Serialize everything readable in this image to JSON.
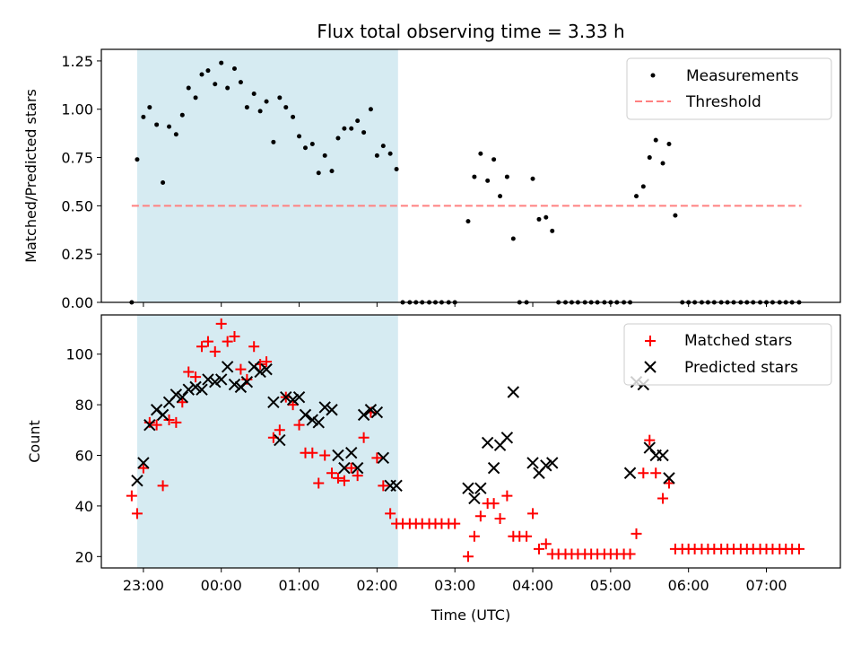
{
  "chart_data": {
    "type": "scatter",
    "title": "Flux total observing time = 3.33 h",
    "xlabel": "Time (UTC)",
    "x_unit": "hours after 22:00 UTC",
    "xlim": [
      0.46,
      9.95
    ],
    "x_ticks": [
      {
        "x": 1,
        "label": "23:00"
      },
      {
        "x": 2,
        "label": "00:00"
      },
      {
        "x": 3,
        "label": "01:00"
      },
      {
        "x": 4,
        "label": "02:00"
      },
      {
        "x": 5,
        "label": "03:00"
      },
      {
        "x": 6,
        "label": "04:00"
      },
      {
        "x": 7,
        "label": "05:00"
      },
      {
        "x": 8,
        "label": "06:00"
      },
      {
        "x": 9,
        "label": "07:00"
      }
    ],
    "shaded_span": {
      "x0": 0.92,
      "x1": 4.27,
      "color": "#add8e6"
    },
    "panels": [
      {
        "id": "ratio",
        "ylabel": "Matched/Predicted stars",
        "ylim": [
          0,
          1.31
        ],
        "y_ticks": [
          {
            "y": 0,
            "label": "0.00"
          },
          {
            "y": 0.25,
            "label": "0.25"
          },
          {
            "y": 0.5,
            "label": "0.50"
          },
          {
            "y": 0.75,
            "label": "0.75"
          },
          {
            "y": 1.0,
            "label": "1.00"
          },
          {
            "y": 1.25,
            "label": "1.25"
          }
        ],
        "legend": {
          "position": "top-right",
          "entries": [
            "Measurements",
            "Threshold"
          ]
        },
        "threshold": {
          "name": "Threshold",
          "value": 0.5,
          "x0": 0.85,
          "x1": 9.45,
          "color": "#ff8080"
        },
        "series": [
          {
            "name": "Measurements",
            "marker": "dot",
            "color": "#000000",
            "x": [
              0.85,
              0.92,
              1.0,
              1.08,
              1.17,
              1.25,
              1.33,
              1.42,
              1.5,
              1.58,
              1.67,
              1.75,
              1.83,
              1.92,
              2.0,
              2.08,
              2.17,
              2.25,
              2.33,
              2.42,
              2.5,
              2.58,
              2.67,
              2.75,
              2.83,
              2.92,
              3.0,
              3.08,
              3.17,
              3.25,
              3.33,
              3.42,
              3.5,
              3.58,
              3.67,
              3.75,
              3.83,
              3.92,
              4.0,
              4.08,
              4.17,
              4.25,
              4.33,
              4.42,
              4.5,
              4.58,
              4.67,
              4.75,
              4.83,
              4.92,
              5.0,
              5.17,
              5.25,
              5.33,
              5.42,
              5.5,
              5.58,
              5.67,
              5.75,
              5.83,
              5.92,
              6.0,
              6.08,
              6.17,
              6.25,
              6.33,
              6.42,
              6.5,
              6.58,
              6.67,
              6.75,
              6.83,
              6.92,
              7.0,
              7.08,
              7.17,
              7.25,
              7.33,
              7.42,
              7.5,
              7.58,
              7.67,
              7.75,
              7.83,
              7.92,
              8.0,
              8.08,
              8.17,
              8.25,
              8.33,
              8.42,
              8.5,
              8.58,
              8.67,
              8.75,
              8.83,
              8.92,
              9.0,
              9.08,
              9.17,
              9.25,
              9.33,
              9.42
            ],
            "y": [
              0.0,
              0.74,
              0.96,
              1.01,
              0.92,
              0.62,
              0.91,
              0.87,
              0.97,
              1.11,
              1.06,
              1.18,
              1.2,
              1.13,
              1.24,
              1.11,
              1.21,
              1.14,
              1.01,
              1.08,
              0.99,
              1.04,
              0.83,
              1.06,
              1.01,
              0.96,
              0.86,
              0.8,
              0.82,
              0.67,
              0.76,
              0.68,
              0.85,
              0.9,
              0.9,
              0.94,
              0.88,
              1.0,
              0.76,
              0.81,
              0.77,
              0.69,
              0.0,
              0.0,
              0.0,
              0.0,
              0.0,
              0.0,
              0.0,
              0.0,
              0.0,
              0.42,
              0.65,
              0.77,
              0.63,
              0.74,
              0.55,
              0.65,
              0.33,
              0.0,
              0.0,
              0.64,
              0.43,
              0.44,
              0.37,
              0.0,
              0.0,
              0.0,
              0.0,
              0.0,
              0.0,
              0.0,
              0.0,
              0.0,
              0.0,
              0.0,
              0.0,
              0.55,
              0.6,
              0.75,
              0.84,
              0.72,
              0.82,
              0.45,
              0.0,
              0.0,
              0.0,
              0.0,
              0.0,
              0.0,
              0.0,
              0.0,
              0.0,
              0.0,
              0.0,
              0.0,
              0.0,
              0.0,
              0.0,
              0.0,
              0.0,
              0.0,
              0.0
            ]
          }
        ]
      },
      {
        "id": "counts",
        "ylabel": "Count",
        "ylim": [
          15.5,
          115.5
        ],
        "y_ticks": [
          {
            "y": 20,
            "label": "20"
          },
          {
            "y": 40,
            "label": "40"
          },
          {
            "y": 60,
            "label": "60"
          },
          {
            "y": 80,
            "label": "80"
          },
          {
            "y": 100,
            "label": "100"
          }
        ],
        "legend": {
          "position": "top-right",
          "entries": [
            "Matched stars",
            "Predicted stars"
          ]
        },
        "series": [
          {
            "name": "Matched stars",
            "marker": "plus",
            "color": "#ff0000",
            "x": [
              0.85,
              0.92,
              1.0,
              1.08,
              1.17,
              1.25,
              1.33,
              1.42,
              1.5,
              1.58,
              1.67,
              1.75,
              1.83,
              1.92,
              2.0,
              2.08,
              2.17,
              2.25,
              2.33,
              2.42,
              2.5,
              2.58,
              2.67,
              2.75,
              2.83,
              2.92,
              3.0,
              3.08,
              3.17,
              3.25,
              3.33,
              3.42,
              3.5,
              3.58,
              3.67,
              3.75,
              3.83,
              3.92,
              4.0,
              4.08,
              4.17,
              4.25,
              4.33,
              4.42,
              4.5,
              4.58,
              4.67,
              4.75,
              4.83,
              4.92,
              5.0,
              5.17,
              5.25,
              5.33,
              5.42,
              5.5,
              5.58,
              5.67,
              5.75,
              5.83,
              5.92,
              6.0,
              6.08,
              6.17,
              6.25,
              6.33,
              6.42,
              6.5,
              6.58,
              6.67,
              6.75,
              6.83,
              6.92,
              7.0,
              7.08,
              7.17,
              7.25,
              7.33,
              7.42,
              7.5,
              7.58,
              7.67,
              7.75,
              7.83,
              7.92,
              8.0,
              8.08,
              8.17,
              8.25,
              8.33,
              8.42,
              8.5,
              8.58,
              8.67,
              8.75,
              8.83,
              8.92,
              9.0,
              9.08,
              9.17,
              9.25,
              9.33,
              9.42
            ],
            "y": [
              44,
              37,
              55,
              73,
              72,
              48,
              74,
              73,
              81,
              93,
              91,
              103,
              105,
              101,
              112,
              105,
              107,
              94,
              90,
              103,
              96,
              97,
              67,
              70,
              83,
              80,
              72,
              61,
              61,
              49,
              60,
              53,
              51,
              50,
              55,
              52,
              67,
              77,
              59,
              48,
              37,
              33,
              33,
              33,
              33,
              33,
              33,
              33,
              33,
              33,
              33,
              20,
              28,
              36,
              41,
              41,
              35,
              44,
              28,
              28,
              28,
              37,
              23,
              25,
              21,
              21,
              21,
              21,
              21,
              21,
              21,
              21,
              21,
              21,
              21,
              21,
              21,
              29,
              53,
              66,
              53,
              43,
              49,
              23,
              23,
              23,
              23,
              23,
              23,
              23,
              23,
              23,
              23,
              23,
              23,
              23,
              23,
              23,
              23,
              23,
              23,
              23,
              23
            ]
          },
          {
            "name": "Predicted stars",
            "marker": "x",
            "color": "#000000",
            "x": [
              0.92,
              1.0,
              1.08,
              1.17,
              1.25,
              1.33,
              1.42,
              1.5,
              1.58,
              1.67,
              1.75,
              1.83,
              1.92,
              2.0,
              2.08,
              2.17,
              2.25,
              2.33,
              2.42,
              2.5,
              2.58,
              2.67,
              2.75,
              2.83,
              2.92,
              3.0,
              3.08,
              3.17,
              3.25,
              3.33,
              3.42,
              3.5,
              3.58,
              3.67,
              3.75,
              3.83,
              3.92,
              4.0,
              4.08,
              4.17,
              4.25,
              5.17,
              5.25,
              5.33,
              5.42,
              5.5,
              5.58,
              5.67,
              5.75,
              6.0,
              6.08,
              6.17,
              6.25,
              7.25,
              7.33,
              7.42,
              7.5,
              7.58,
              7.67,
              7.75
            ],
            "y": [
              50,
              57,
              72,
              78,
              76,
              81,
              84,
              83,
              86,
              87,
              86,
              90,
              89,
              90,
              95,
              88,
              87,
              89,
              95,
              93,
              94,
              81,
              66,
              83,
              82,
              83,
              76,
              74,
              73,
              79,
              78,
              60,
              55,
              61,
              55,
              76,
              78,
              77,
              59,
              48,
              48,
              47,
              43,
              47,
              65,
              55,
              64,
              67,
              85,
              57,
              53,
              56,
              57,
              53,
              89,
              88,
              63,
              60,
              60,
              51
            ]
          }
        ]
      }
    ]
  }
}
